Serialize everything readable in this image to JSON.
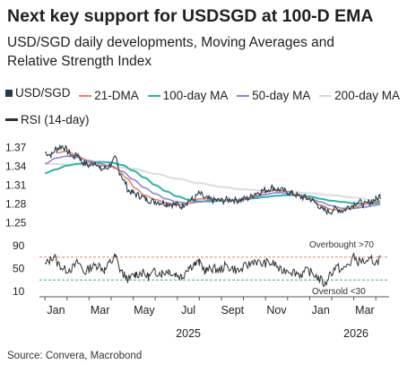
{
  "chart_data": {
    "title": "Next key support for USDSGD at 100-D EMA",
    "subtitle": "USD/SGD daily developments, Moving Averages and Relative Strength Index",
    "type": "line",
    "legend": [
      {
        "name": "USD/SGD",
        "color": "#1f3b4d",
        "marker": "square"
      },
      {
        "name": "21-DMA",
        "color": "#e8836a",
        "marker": "line"
      },
      {
        "name": "100-day MA",
        "color": "#2ab5a5",
        "marker": "line"
      },
      {
        "name": "50-day MA",
        "color": "#8f83d6",
        "marker": "line"
      },
      {
        "name": "200-day MA",
        "color": "#d9d9d9",
        "marker": "line"
      },
      {
        "name": "RSI (14-day)",
        "color": "#333333",
        "marker": "line"
      }
    ],
    "x_labels": [
      "Jan",
      "Mar",
      "May",
      "Jul",
      "Sept",
      "Nov",
      "Jan",
      "Mar"
    ],
    "x_label_months": [
      0,
      2,
      4,
      6,
      8,
      10,
      12,
      14
    ],
    "years": [
      {
        "label": "2025",
        "month": 6
      },
      {
        "label": "2026",
        "month": 13.6
      }
    ],
    "x_range_months": [
      -0.25,
      15.6
    ],
    "price_panel": {
      "yticks": [
        "1.37",
        "1.34",
        "1.31",
        "1.28",
        "1.25"
      ],
      "ylim": [
        1.242,
        1.382
      ],
      "anchors": {
        "usdsgd": [
          [
            0,
            1.362
          ],
          [
            0.3,
            1.358
          ],
          [
            0.5,
            1.368
          ],
          [
            0.8,
            1.372
          ],
          [
            1.1,
            1.362
          ],
          [
            1.3,
            1.355
          ],
          [
            1.5,
            1.359
          ],
          [
            1.7,
            1.346
          ],
          [
            2.0,
            1.341
          ],
          [
            2.3,
            1.347
          ],
          [
            2.5,
            1.335
          ],
          [
            2.8,
            1.337
          ],
          [
            3.0,
            1.344
          ],
          [
            3.2,
            1.352
          ],
          [
            3.4,
            1.33
          ],
          [
            3.6,
            1.316
          ],
          [
            3.8,
            1.301
          ],
          [
            4.0,
            1.297
          ],
          [
            4.3,
            1.293
          ],
          [
            4.6,
            1.287
          ],
          [
            5.0,
            1.284
          ],
          [
            5.5,
            1.281
          ],
          [
            5.9,
            1.279
          ],
          [
            6.2,
            1.276
          ],
          [
            6.4,
            1.283
          ],
          [
            6.7,
            1.287
          ],
          [
            7.0,
            1.296
          ],
          [
            7.3,
            1.288
          ],
          [
            7.7,
            1.286
          ],
          [
            8.0,
            1.285
          ],
          [
            8.4,
            1.287
          ],
          [
            8.8,
            1.286
          ],
          [
            9.2,
            1.289
          ],
          [
            9.6,
            1.298
          ],
          [
            10.0,
            1.302
          ],
          [
            10.3,
            1.306
          ],
          [
            10.6,
            1.303
          ],
          [
            10.9,
            1.3
          ],
          [
            11.2,
            1.297
          ],
          [
            11.6,
            1.291
          ],
          [
            12.0,
            1.288
          ],
          [
            12.3,
            1.281
          ],
          [
            12.6,
            1.27
          ],
          [
            12.9,
            1.268
          ],
          [
            13.2,
            1.272
          ],
          [
            13.5,
            1.269
          ],
          [
            13.8,
            1.276
          ],
          [
            14.2,
            1.283
          ],
          [
            14.5,
            1.279
          ],
          [
            14.8,
            1.284
          ],
          [
            15.0,
            1.287
          ],
          [
            15.2,
            1.293
          ]
        ],
        "ma21": [
          [
            0.5,
            1.361
          ],
          [
            1.0,
            1.364
          ],
          [
            1.5,
            1.356
          ],
          [
            2.0,
            1.346
          ],
          [
            2.5,
            1.341
          ],
          [
            3.0,
            1.339
          ],
          [
            3.3,
            1.335
          ],
          [
            3.7,
            1.321
          ],
          [
            4.1,
            1.305
          ],
          [
            4.5,
            1.294
          ],
          [
            5.0,
            1.287
          ],
          [
            5.5,
            1.282
          ],
          [
            6.0,
            1.278
          ],
          [
            6.5,
            1.281
          ],
          [
            7.0,
            1.288
          ],
          [
            7.5,
            1.288
          ],
          [
            8.0,
            1.286
          ],
          [
            8.5,
            1.286
          ],
          [
            9.0,
            1.287
          ],
          [
            9.5,
            1.293
          ],
          [
            10.0,
            1.299
          ],
          [
            10.5,
            1.302
          ],
          [
            11.0,
            1.3
          ],
          [
            11.5,
            1.293
          ],
          [
            12.0,
            1.288
          ],
          [
            12.5,
            1.278
          ],
          [
            13.0,
            1.271
          ],
          [
            13.5,
            1.27
          ],
          [
            14.0,
            1.274
          ],
          [
            14.5,
            1.28
          ],
          [
            15.0,
            1.283
          ],
          [
            15.2,
            1.285
          ]
        ],
        "ma50": [
          [
            0,
            1.344
          ],
          [
            0.5,
            1.353
          ],
          [
            1.0,
            1.356
          ],
          [
            1.5,
            1.354
          ],
          [
            2.0,
            1.349
          ],
          [
            2.5,
            1.344
          ],
          [
            3.0,
            1.34
          ],
          [
            3.5,
            1.332
          ],
          [
            4.0,
            1.319
          ],
          [
            4.5,
            1.306
          ],
          [
            5.0,
            1.296
          ],
          [
            5.5,
            1.288
          ],
          [
            6.0,
            1.283
          ],
          [
            6.5,
            1.281
          ],
          [
            7.0,
            1.283
          ],
          [
            7.5,
            1.286
          ],
          [
            8.0,
            1.286
          ],
          [
            8.5,
            1.286
          ],
          [
            9.0,
            1.287
          ],
          [
            9.5,
            1.291
          ],
          [
            10.0,
            1.295
          ],
          [
            10.5,
            1.298
          ],
          [
            11.0,
            1.297
          ],
          [
            11.5,
            1.294
          ],
          [
            12.0,
            1.289
          ],
          [
            12.5,
            1.283
          ],
          [
            13.0,
            1.277
          ],
          [
            13.5,
            1.273
          ],
          [
            14.0,
            1.273
          ],
          [
            14.5,
            1.275
          ],
          [
            15.0,
            1.278
          ],
          [
            15.2,
            1.279
          ]
        ],
        "ma100": [
          [
            0,
            1.329
          ],
          [
            0.5,
            1.335
          ],
          [
            1.0,
            1.341
          ],
          [
            1.5,
            1.344
          ],
          [
            2.0,
            1.346
          ],
          [
            2.5,
            1.347
          ],
          [
            3.0,
            1.346
          ],
          [
            3.5,
            1.342
          ],
          [
            4.0,
            1.333
          ],
          [
            4.5,
            1.322
          ],
          [
            5.0,
            1.31
          ],
          [
            5.5,
            1.3
          ],
          [
            6.0,
            1.292
          ],
          [
            6.5,
            1.287
          ],
          [
            7.0,
            1.284
          ],
          [
            7.5,
            1.284
          ],
          [
            8.0,
            1.285
          ],
          [
            8.5,
            1.286
          ],
          [
            9.0,
            1.287
          ],
          [
            9.5,
            1.289
          ],
          [
            10.0,
            1.291
          ],
          [
            10.5,
            1.293
          ],
          [
            11.0,
            1.294
          ],
          [
            11.5,
            1.294
          ],
          [
            12.0,
            1.292
          ],
          [
            12.5,
            1.288
          ],
          [
            13.0,
            1.285
          ],
          [
            13.5,
            1.283
          ],
          [
            14.0,
            1.281
          ],
          [
            14.5,
            1.28
          ],
          [
            15.0,
            1.281
          ],
          [
            15.2,
            1.282
          ]
        ],
        "ma200": [
          [
            0,
            1.344
          ],
          [
            1.0,
            1.343
          ],
          [
            2.0,
            1.342
          ],
          [
            3.0,
            1.34
          ],
          [
            4.0,
            1.336
          ],
          [
            5.0,
            1.328
          ],
          [
            6.0,
            1.32
          ],
          [
            7.0,
            1.313
          ],
          [
            8.0,
            1.307
          ],
          [
            9.0,
            1.303
          ],
          [
            10.0,
            1.301
          ],
          [
            11.0,
            1.299
          ],
          [
            12.0,
            1.297
          ],
          [
            13.0,
            1.294
          ],
          [
            14.0,
            1.29
          ],
          [
            15.0,
            1.286
          ],
          [
            15.2,
            1.285
          ]
        ]
      }
    },
    "rsi_panel": {
      "yticks": [
        "90",
        "50",
        "10"
      ],
      "ylim": [
        10,
        90
      ],
      "overbought": 70,
      "oversold": 30,
      "overbought_label": "Overbought >70",
      "oversold_label": "Oversold <30",
      "anchors": [
        [
          0,
          56
        ],
        [
          0.2,
          64
        ],
        [
          0.4,
          72
        ],
        [
          0.6,
          58
        ],
        [
          0.9,
          48
        ],
        [
          1.2,
          50
        ],
        [
          1.5,
          60
        ],
        [
          1.8,
          44
        ],
        [
          2.1,
          52
        ],
        [
          2.4,
          56
        ],
        [
          2.7,
          48
        ],
        [
          3.0,
          62
        ],
        [
          3.2,
          70
        ],
        [
          3.4,
          48
        ],
        [
          3.6,
          38
        ],
        [
          3.8,
          32
        ],
        [
          4.1,
          40
        ],
        [
          4.4,
          42
        ],
        [
          4.7,
          36
        ],
        [
          5.0,
          44
        ],
        [
          5.3,
          42
        ],
        [
          5.6,
          46
        ],
        [
          5.9,
          40
        ],
        [
          6.2,
          36
        ],
        [
          6.5,
          52
        ],
        [
          6.8,
          58
        ],
        [
          7.0,
          60
        ],
        [
          7.3,
          46
        ],
        [
          7.6,
          50
        ],
        [
          7.9,
          48
        ],
        [
          8.2,
          54
        ],
        [
          8.5,
          50
        ],
        [
          8.8,
          46
        ],
        [
          9.2,
          56
        ],
        [
          9.5,
          64
        ],
        [
          9.8,
          58
        ],
        [
          10.1,
          60
        ],
        [
          10.4,
          58
        ],
        [
          10.7,
          46
        ],
        [
          11.0,
          48
        ],
        [
          11.3,
          44
        ],
        [
          11.6,
          40
        ],
        [
          11.9,
          46
        ],
        [
          12.2,
          40
        ],
        [
          12.5,
          30
        ],
        [
          12.7,
          22
        ],
        [
          12.9,
          40
        ],
        [
          13.2,
          52
        ],
        [
          13.5,
          48
        ],
        [
          13.8,
          58
        ],
        [
          14.0,
          70
        ],
        [
          14.2,
          62
        ],
        [
          14.4,
          64
        ],
        [
          14.6,
          58
        ],
        [
          14.8,
          66
        ],
        [
          15.0,
          60
        ],
        [
          15.2,
          68
        ]
      ]
    },
    "source": "Source: Convera, Macrobond"
  }
}
